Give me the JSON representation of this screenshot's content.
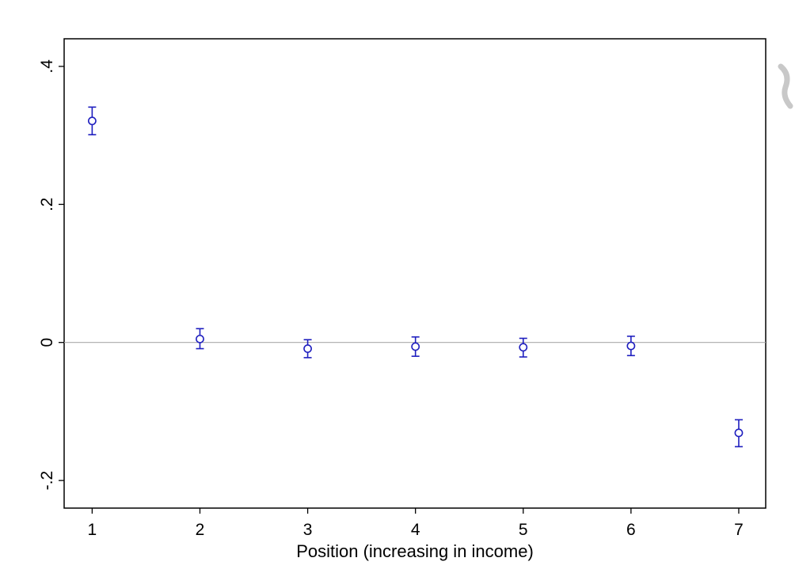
{
  "chart_data": {
    "type": "scatter",
    "title": "",
    "xlabel": "Position (increasing in income)",
    "ylabel": "",
    "xlim": [
      0.74,
      7.25
    ],
    "ylim": [
      -0.24,
      0.44
    ],
    "xticks": [
      1,
      2,
      3,
      4,
      5,
      6,
      7
    ],
    "xtick_labels": [
      "1",
      "2",
      "3",
      "4",
      "5",
      "6",
      "7"
    ],
    "yticks": [
      -0.2,
      0,
      0.2,
      0.4
    ],
    "ytick_labels": [
      "-.2",
      "0",
      ".2",
      ".4"
    ],
    "reference_line_y": 0,
    "grid": false,
    "legend": "none",
    "marker_color": "#1f1fbf",
    "reference_line_color": "#aaaaaa",
    "points": [
      {
        "x": 1,
        "y": 0.321,
        "lower": 0.301,
        "upper": 0.341
      },
      {
        "x": 2,
        "y": 0.005,
        "lower": -0.009,
        "upper": 0.02
      },
      {
        "x": 3,
        "y": -0.009,
        "lower": -0.022,
        "upper": 0.004
      },
      {
        "x": 4,
        "y": -0.006,
        "lower": -0.02,
        "upper": 0.008
      },
      {
        "x": 5,
        "y": -0.007,
        "lower": -0.021,
        "upper": 0.006
      },
      {
        "x": 6,
        "y": -0.005,
        "lower": -0.019,
        "upper": 0.009
      },
      {
        "x": 7,
        "y": -0.131,
        "lower": -0.151,
        "upper": -0.112
      }
    ]
  }
}
